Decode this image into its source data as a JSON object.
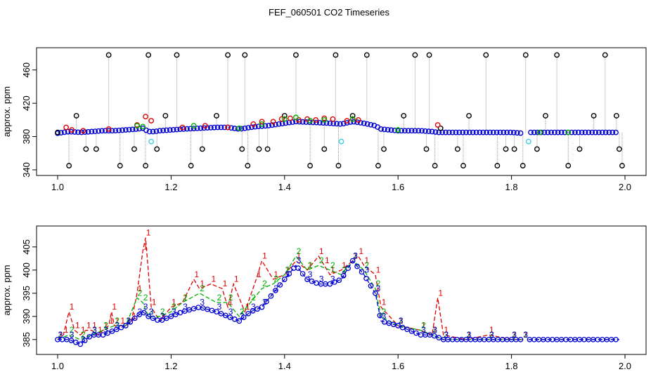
{
  "title": "FEF_060501  CO2 Timeseries",
  "colors": {
    "black": "#000000",
    "red": "#e00000",
    "green": "#00b000",
    "blue": "#0000d0",
    "cyan": "#40d0e0",
    "gray": "#9a9a9a"
  },
  "chart_data": [
    {
      "type": "scatter",
      "ylabel": "approx. ppm",
      "xlabel": "",
      "xlim": [
        1.0,
        2.0
      ],
      "ylim": [
        340,
        480
      ],
      "x_ticks": [
        "1.0",
        "1.2",
        "1.4",
        "1.6",
        "1.8",
        "2.0"
      ],
      "y_ticks": [
        "340",
        "380",
        "420",
        "460"
      ],
      "grid": false,
      "series": [
        {
          "color": "black",
          "marker": "circle",
          "x": [
            1.0,
            1.02,
            1.033,
            1.05,
            1.068,
            1.09,
            1.11,
            1.135,
            1.155,
            1.16,
            1.175,
            1.19,
            1.21,
            1.235,
            1.255,
            1.28,
            1.3,
            1.325,
            1.33,
            1.335,
            1.355,
            1.37,
            1.4,
            1.42,
            1.445,
            1.47,
            1.49,
            1.495,
            1.52,
            1.545,
            1.565,
            1.575,
            1.61,
            1.63,
            1.65,
            1.655,
            1.665,
            1.675,
            1.705,
            1.715,
            1.725,
            1.755,
            1.775,
            1.79,
            1.805,
            1.82,
            1.825,
            1.845,
            1.86,
            1.88,
            1.9,
            1.92,
            1.945,
            1.965,
            1.985,
            1.99,
            1.995
          ],
          "y": [
            385,
            345,
            405,
            365,
            365,
            478,
            345,
            365,
            345,
            478,
            365,
            405,
            478,
            345,
            365,
            405,
            478,
            365,
            478,
            345,
            365,
            365,
            405,
            478,
            345,
            365,
            478,
            345,
            405,
            478,
            345,
            365,
            405,
            478,
            365,
            478,
            345,
            390,
            365,
            345,
            405,
            478,
            345,
            365,
            365,
            345,
            478,
            365,
            405,
            478,
            345,
            365,
            405,
            478,
            405,
            365,
            345
          ]
        },
        {
          "color": "red",
          "marker": "circle",
          "x": [
            1.015,
            1.025,
            1.045,
            1.09,
            1.14,
            1.155,
            1.165,
            1.22,
            1.26,
            1.3,
            1.345,
            1.36,
            1.38,
            1.395,
            1.41,
            1.425,
            1.44,
            1.455,
            1.47,
            1.485,
            1.51,
            1.52,
            1.53,
            1.67
          ],
          "y": [
            391,
            388,
            387,
            389,
            394,
            404,
            399,
            391,
            393,
            391,
            395,
            398,
            398,
            401,
            402,
            400,
            401,
            400,
            402,
            401,
            399,
            401,
            400,
            394
          ]
        },
        {
          "color": "green",
          "marker": "circle",
          "x": [
            1.14,
            1.15,
            1.24,
            1.32,
            1.36,
            1.4,
            1.42,
            1.445,
            1.47,
            1.52,
            1.6,
            1.85,
            1.9
          ],
          "y": [
            393,
            392,
            393,
            390,
            395,
            401,
            403,
            399,
            400,
            401,
            388,
            385,
            385
          ]
        },
        {
          "color": "cyan",
          "marker": "circle",
          "x": [
            1.165,
            1.5,
            1.83
          ],
          "y": [
            374,
            374,
            374
          ]
        }
      ],
      "base_series": {
        "color": "blue",
        "marker": "circle",
        "x": [
          1.0,
          1.02,
          1.04,
          1.06,
          1.08,
          1.1,
          1.12,
          1.14,
          1.15,
          1.16,
          1.17,
          1.18,
          1.2,
          1.22,
          1.25,
          1.28,
          1.3,
          1.32,
          1.33,
          1.35,
          1.37,
          1.4,
          1.42,
          1.45,
          1.48,
          1.5,
          1.52,
          1.54,
          1.56,
          1.57,
          1.6,
          1.62,
          1.64,
          1.66,
          1.67,
          1.7,
          1.75,
          1.8,
          1.82,
          1.83,
          1.85,
          1.9,
          1.95,
          1.99
        ],
        "y": [
          384,
          386,
          385,
          386,
          387,
          387,
          388,
          389,
          390,
          386,
          386,
          387,
          388,
          389,
          390,
          391,
          391,
          389,
          390,
          392,
          393,
          396,
          398,
          397,
          396,
          395,
          398,
          396,
          393,
          389,
          387,
          387,
          387,
          386,
          385,
          385,
          385,
          385,
          384,
          385,
          385,
          385,
          385,
          385
        ]
      }
    },
    {
      "type": "line",
      "ylabel": "approx. ppm",
      "xlabel": "",
      "xlim": [
        1.0,
        2.0
      ],
      "ylim": [
        383,
        408
      ],
      "x_ticks": [
        "1.0",
        "1.2",
        "1.4",
        "1.6",
        "1.8",
        "2.0"
      ],
      "y_ticks": [
        "385",
        "390",
        "395",
        "400",
        "405"
      ],
      "grid": false,
      "series": [
        {
          "label": "1",
          "color": "red",
          "x": [
            1.0,
            1.01,
            1.02,
            1.03,
            1.04,
            1.05,
            1.06,
            1.07,
            1.08,
            1.09,
            1.095,
            1.1,
            1.11,
            1.12,
            1.13,
            1.14,
            1.15,
            1.155,
            1.165,
            1.18,
            1.2,
            1.22,
            1.24,
            1.25,
            1.27,
            1.29,
            1.3,
            1.31,
            1.33,
            1.35,
            1.36,
            1.38,
            1.4,
            1.42,
            1.44,
            1.46,
            1.47,
            1.48,
            1.5,
            1.52,
            1.53,
            1.54,
            1.56,
            1.57,
            1.6,
            1.64,
            1.66,
            1.67,
            1.68,
            1.72,
            1.76,
            1.8,
            1.82
          ],
          "y": [
            385,
            386,
            391,
            387,
            386,
            387,
            387,
            386,
            387,
            388,
            391,
            388,
            388,
            388,
            389,
            395,
            404,
            407,
            392,
            389,
            392,
            393,
            398,
            396,
            397,
            396,
            392,
            397,
            391,
            398,
            402,
            398,
            399,
            402,
            400,
            403,
            401,
            399,
            400,
            402,
            403,
            401,
            399,
            392,
            388,
            387,
            386,
            394,
            386,
            385,
            386,
            385,
            385
          ]
        },
        {
          "label": "2",
          "color": "green",
          "x": [
            1.0,
            1.02,
            1.04,
            1.06,
            1.08,
            1.1,
            1.12,
            1.14,
            1.15,
            1.16,
            1.18,
            1.2,
            1.22,
            1.25,
            1.28,
            1.3,
            1.32,
            1.34,
            1.36,
            1.38,
            1.4,
            1.42,
            1.44,
            1.46,
            1.48,
            1.5,
            1.52,
            1.54,
            1.56,
            1.57,
            1.6,
            1.64,
            1.66,
            1.68,
            1.72,
            1.76,
            1.8,
            1.82
          ],
          "y": [
            385,
            386,
            385,
            386,
            387,
            388,
            388,
            394,
            393,
            390,
            390,
            391,
            393,
            395,
            393,
            393,
            390,
            393,
            396,
            397,
            399,
            403,
            400,
            401,
            400,
            399,
            402,
            400,
            396,
            390,
            388,
            387,
            386,
            385,
            385,
            385,
            385,
            385
          ]
        },
        {
          "label": "3",
          "color": "blue",
          "x": [
            1.0,
            1.02,
            1.04,
            1.06,
            1.08,
            1.1,
            1.12,
            1.14,
            1.15,
            1.16,
            1.18,
            1.2,
            1.22,
            1.25,
            1.28,
            1.3,
            1.32,
            1.34,
            1.36,
            1.38,
            1.4,
            1.42,
            1.44,
            1.46,
            1.48,
            1.5,
            1.52,
            1.54,
            1.56,
            1.57,
            1.6,
            1.64,
            1.66,
            1.68,
            1.72,
            1.76,
            1.8,
            1.82
          ],
          "y": [
            385,
            385,
            384,
            386,
            386,
            387,
            388,
            390,
            391,
            390,
            389,
            390,
            391,
            392,
            391,
            390,
            389,
            391,
            392,
            395,
            398,
            401,
            398,
            397,
            397,
            398,
            402,
            399,
            395,
            389,
            388,
            386,
            386,
            385,
            385,
            385,
            385,
            385
          ]
        }
      ],
      "gap_x": [
        1.82,
        1.83
      ],
      "tail": {
        "x": [
          1.83,
          1.86,
          1.9,
          1.94,
          1.99
        ],
        "y1": [
          385,
          385,
          385,
          385,
          385
        ],
        "y2": [
          385,
          385,
          385,
          385,
          385
        ],
        "y3": [
          385,
          385,
          385,
          385,
          385
        ]
      }
    }
  ]
}
